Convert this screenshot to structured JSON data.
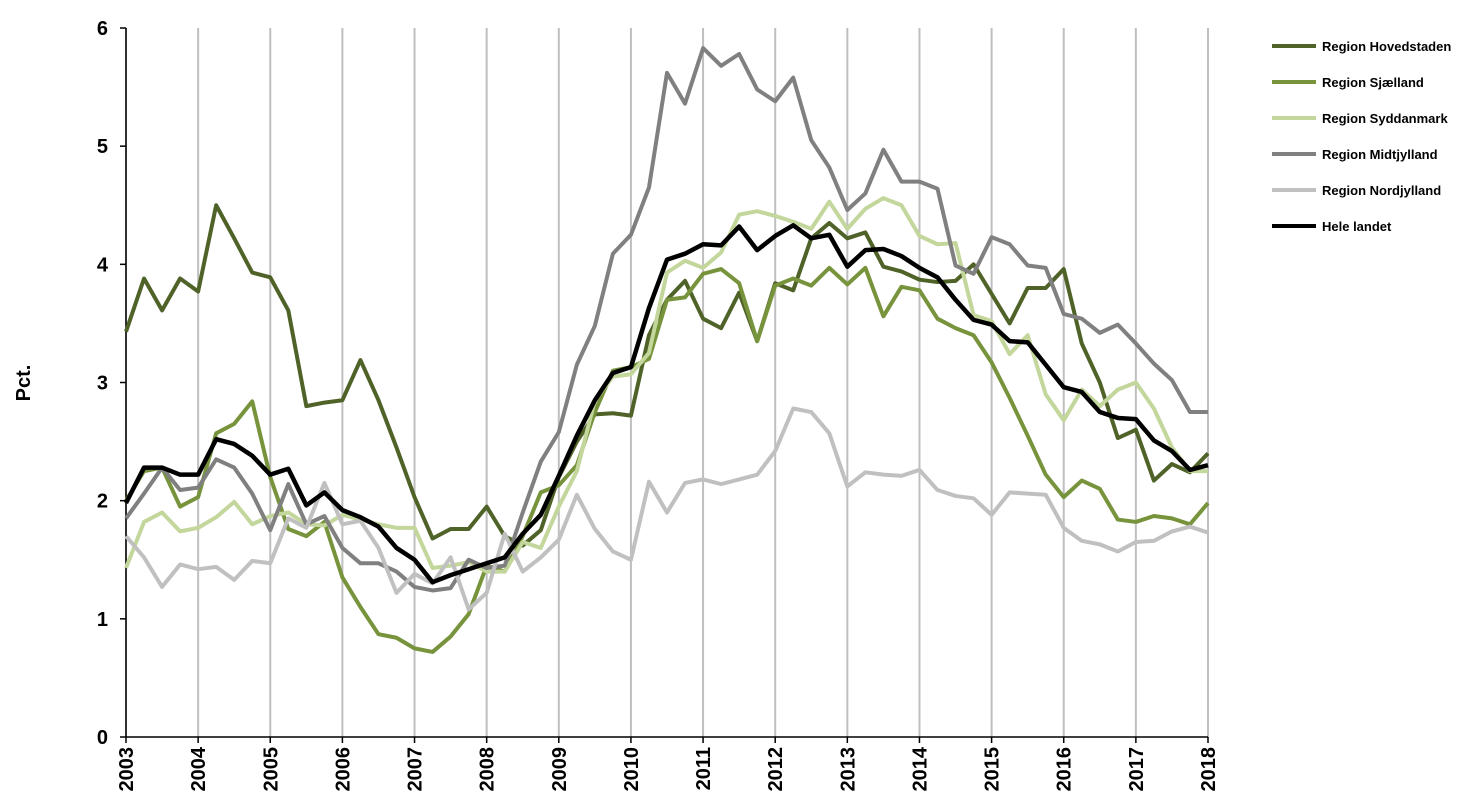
{
  "chart_data": {
    "type": "line",
    "y_label": "Pct.",
    "x": [
      2003,
      2003.25,
      2003.5,
      2003.75,
      2004,
      2004.25,
      2004.5,
      2004.75,
      2005,
      2005.25,
      2005.5,
      2005.75,
      2006,
      2006.25,
      2006.5,
      2006.75,
      2007,
      2007.25,
      2007.5,
      2007.75,
      2008,
      2008.25,
      2008.5,
      2008.75,
      2009,
      2009.25,
      2009.5,
      2009.75,
      2010,
      2010.25,
      2010.5,
      2010.75,
      2011,
      2011.25,
      2011.5,
      2011.75,
      2012,
      2012.25,
      2012.5,
      2012.75,
      2013,
      2013.25,
      2013.5,
      2013.75,
      2014,
      2014.25,
      2014.5,
      2014.75,
      2015,
      2015.25,
      2015.5,
      2015.75,
      2016,
      2016.25,
      2016.5,
      2016.75,
      2017,
      2017.25,
      2017.5,
      2017.75,
      2018
    ],
    "series": [
      {
        "name": "Region Hovedstaden",
        "color": "#4f6228",
        "values": [
          3.43,
          3.88,
          3.61,
          3.88,
          3.77,
          4.5,
          4.22,
          3.93,
          3.89,
          3.61,
          2.8,
          2.83,
          2.85,
          3.19,
          2.85,
          2.45,
          2.03,
          1.68,
          1.76,
          1.76,
          1.95,
          1.7,
          1.62,
          1.75,
          2.2,
          2.5,
          2.73,
          2.74,
          2.72,
          3.4,
          3.7,
          3.86,
          3.54,
          3.46,
          3.76,
          3.35,
          3.84,
          3.78,
          4.22,
          4.35,
          4.22,
          4.27,
          3.98,
          3.94,
          3.87,
          3.85,
          3.86,
          4.0,
          3.75,
          3.5,
          3.8,
          3.8,
          3.96,
          3.33,
          3.0,
          2.53,
          2.6,
          2.17,
          2.31,
          2.24,
          2.4
        ]
      },
      {
        "name": "Region Sjælland",
        "color": "#77933c",
        "values": [
          2.0,
          2.25,
          2.28,
          1.95,
          2.03,
          2.57,
          2.65,
          2.84,
          2.2,
          1.76,
          1.7,
          1.82,
          1.35,
          1.1,
          0.87,
          0.84,
          0.75,
          0.72,
          0.85,
          1.04,
          1.45,
          1.4,
          1.7,
          2.07,
          2.13,
          2.3,
          2.75,
          3.1,
          3.13,
          3.2,
          3.7,
          3.72,
          3.92,
          3.96,
          3.84,
          3.35,
          3.82,
          3.88,
          3.82,
          3.97,
          3.83,
          3.97,
          3.56,
          3.81,
          3.78,
          3.54,
          3.46,
          3.4,
          3.17,
          2.87,
          2.55,
          2.22,
          2.03,
          2.17,
          2.1,
          1.84,
          1.82,
          1.87,
          1.85,
          1.8,
          1.98
        ]
      },
      {
        "name": "Region Syddanmark",
        "color": "#c3d69b",
        "values": [
          1.43,
          1.82,
          1.9,
          1.74,
          1.77,
          1.86,
          1.99,
          1.8,
          1.87,
          1.9,
          1.8,
          1.79,
          1.88,
          1.84,
          1.8,
          1.77,
          1.77,
          1.43,
          1.45,
          1.48,
          1.4,
          1.4,
          1.65,
          1.6,
          1.95,
          2.25,
          2.85,
          3.05,
          3.07,
          3.25,
          3.93,
          4.03,
          3.97,
          4.1,
          4.42,
          4.45,
          4.41,
          4.36,
          4.3,
          4.53,
          4.3,
          4.47,
          4.56,
          4.5,
          4.24,
          4.17,
          4.18,
          3.57,
          3.52,
          3.24,
          3.4,
          2.9,
          2.68,
          2.94,
          2.8,
          2.94,
          3.0,
          2.78,
          2.45,
          2.25,
          2.25
        ]
      },
      {
        "name": "Region Midtjylland",
        "color": "#808080",
        "values": [
          1.85,
          2.06,
          2.28,
          2.09,
          2.11,
          2.35,
          2.28,
          2.06,
          1.75,
          2.14,
          1.8,
          1.87,
          1.6,
          1.47,
          1.47,
          1.4,
          1.27,
          1.24,
          1.26,
          1.5,
          1.43,
          1.45,
          1.9,
          2.33,
          2.58,
          3.15,
          3.48,
          4.09,
          4.25,
          4.65,
          5.62,
          5.36,
          5.83,
          5.68,
          5.78,
          5.48,
          5.38,
          5.58,
          5.05,
          4.82,
          4.46,
          4.6,
          4.97,
          4.7,
          4.7,
          4.64,
          3.99,
          3.92,
          4.23,
          4.17,
          3.99,
          3.97,
          3.58,
          3.54,
          3.42,
          3.49,
          3.33,
          3.16,
          3.02,
          2.75,
          2.75
        ]
      },
      {
        "name": "Region Nordjylland",
        "color": "#c0c0c0",
        "values": [
          1.7,
          1.52,
          1.27,
          1.46,
          1.42,
          1.44,
          1.33,
          1.49,
          1.47,
          1.85,
          1.77,
          2.15,
          1.8,
          1.83,
          1.6,
          1.22,
          1.38,
          1.3,
          1.52,
          1.08,
          1.22,
          1.72,
          1.4,
          1.52,
          1.67,
          2.05,
          1.76,
          1.57,
          1.5,
          2.16,
          1.9,
          2.15,
          2.18,
          2.14,
          2.18,
          2.22,
          2.42,
          2.78,
          2.75,
          2.57,
          2.12,
          2.24,
          2.22,
          2.21,
          2.26,
          2.09,
          2.04,
          2.02,
          1.88,
          2.07,
          2.06,
          2.05,
          1.77,
          1.66,
          1.63,
          1.57,
          1.65,
          1.66,
          1.74,
          1.78,
          1.73
        ]
      },
      {
        "name": "Hele landet",
        "color": "#000000",
        "values": [
          1.98,
          2.28,
          2.28,
          2.22,
          2.22,
          2.52,
          2.48,
          2.38,
          2.22,
          2.27,
          1.96,
          2.07,
          1.92,
          1.86,
          1.78,
          1.6,
          1.5,
          1.31,
          1.37,
          1.42,
          1.47,
          1.52,
          1.72,
          1.88,
          2.21,
          2.55,
          2.85,
          3.08,
          3.13,
          3.63,
          4.04,
          4.09,
          4.17,
          4.16,
          4.32,
          4.12,
          4.24,
          4.33,
          4.22,
          4.25,
          3.98,
          4.12,
          4.13,
          4.07,
          3.97,
          3.89,
          3.7,
          3.53,
          3.49,
          3.35,
          3.34,
          3.15,
          2.96,
          2.92,
          2.75,
          2.7,
          2.69,
          2.51,
          2.42,
          2.26,
          2.3
        ]
      }
    ],
    "xlim": [
      2003,
      2018
    ],
    "xticks": [
      2003,
      2004,
      2005,
      2006,
      2007,
      2008,
      2009,
      2010,
      2011,
      2012,
      2013,
      2014,
      2015,
      2016,
      2017,
      2018
    ],
    "ylim": [
      0,
      6
    ],
    "yticks": [
      0,
      1,
      2,
      3,
      4,
      5,
      6
    ],
    "grid": "x",
    "legend": "right"
  }
}
